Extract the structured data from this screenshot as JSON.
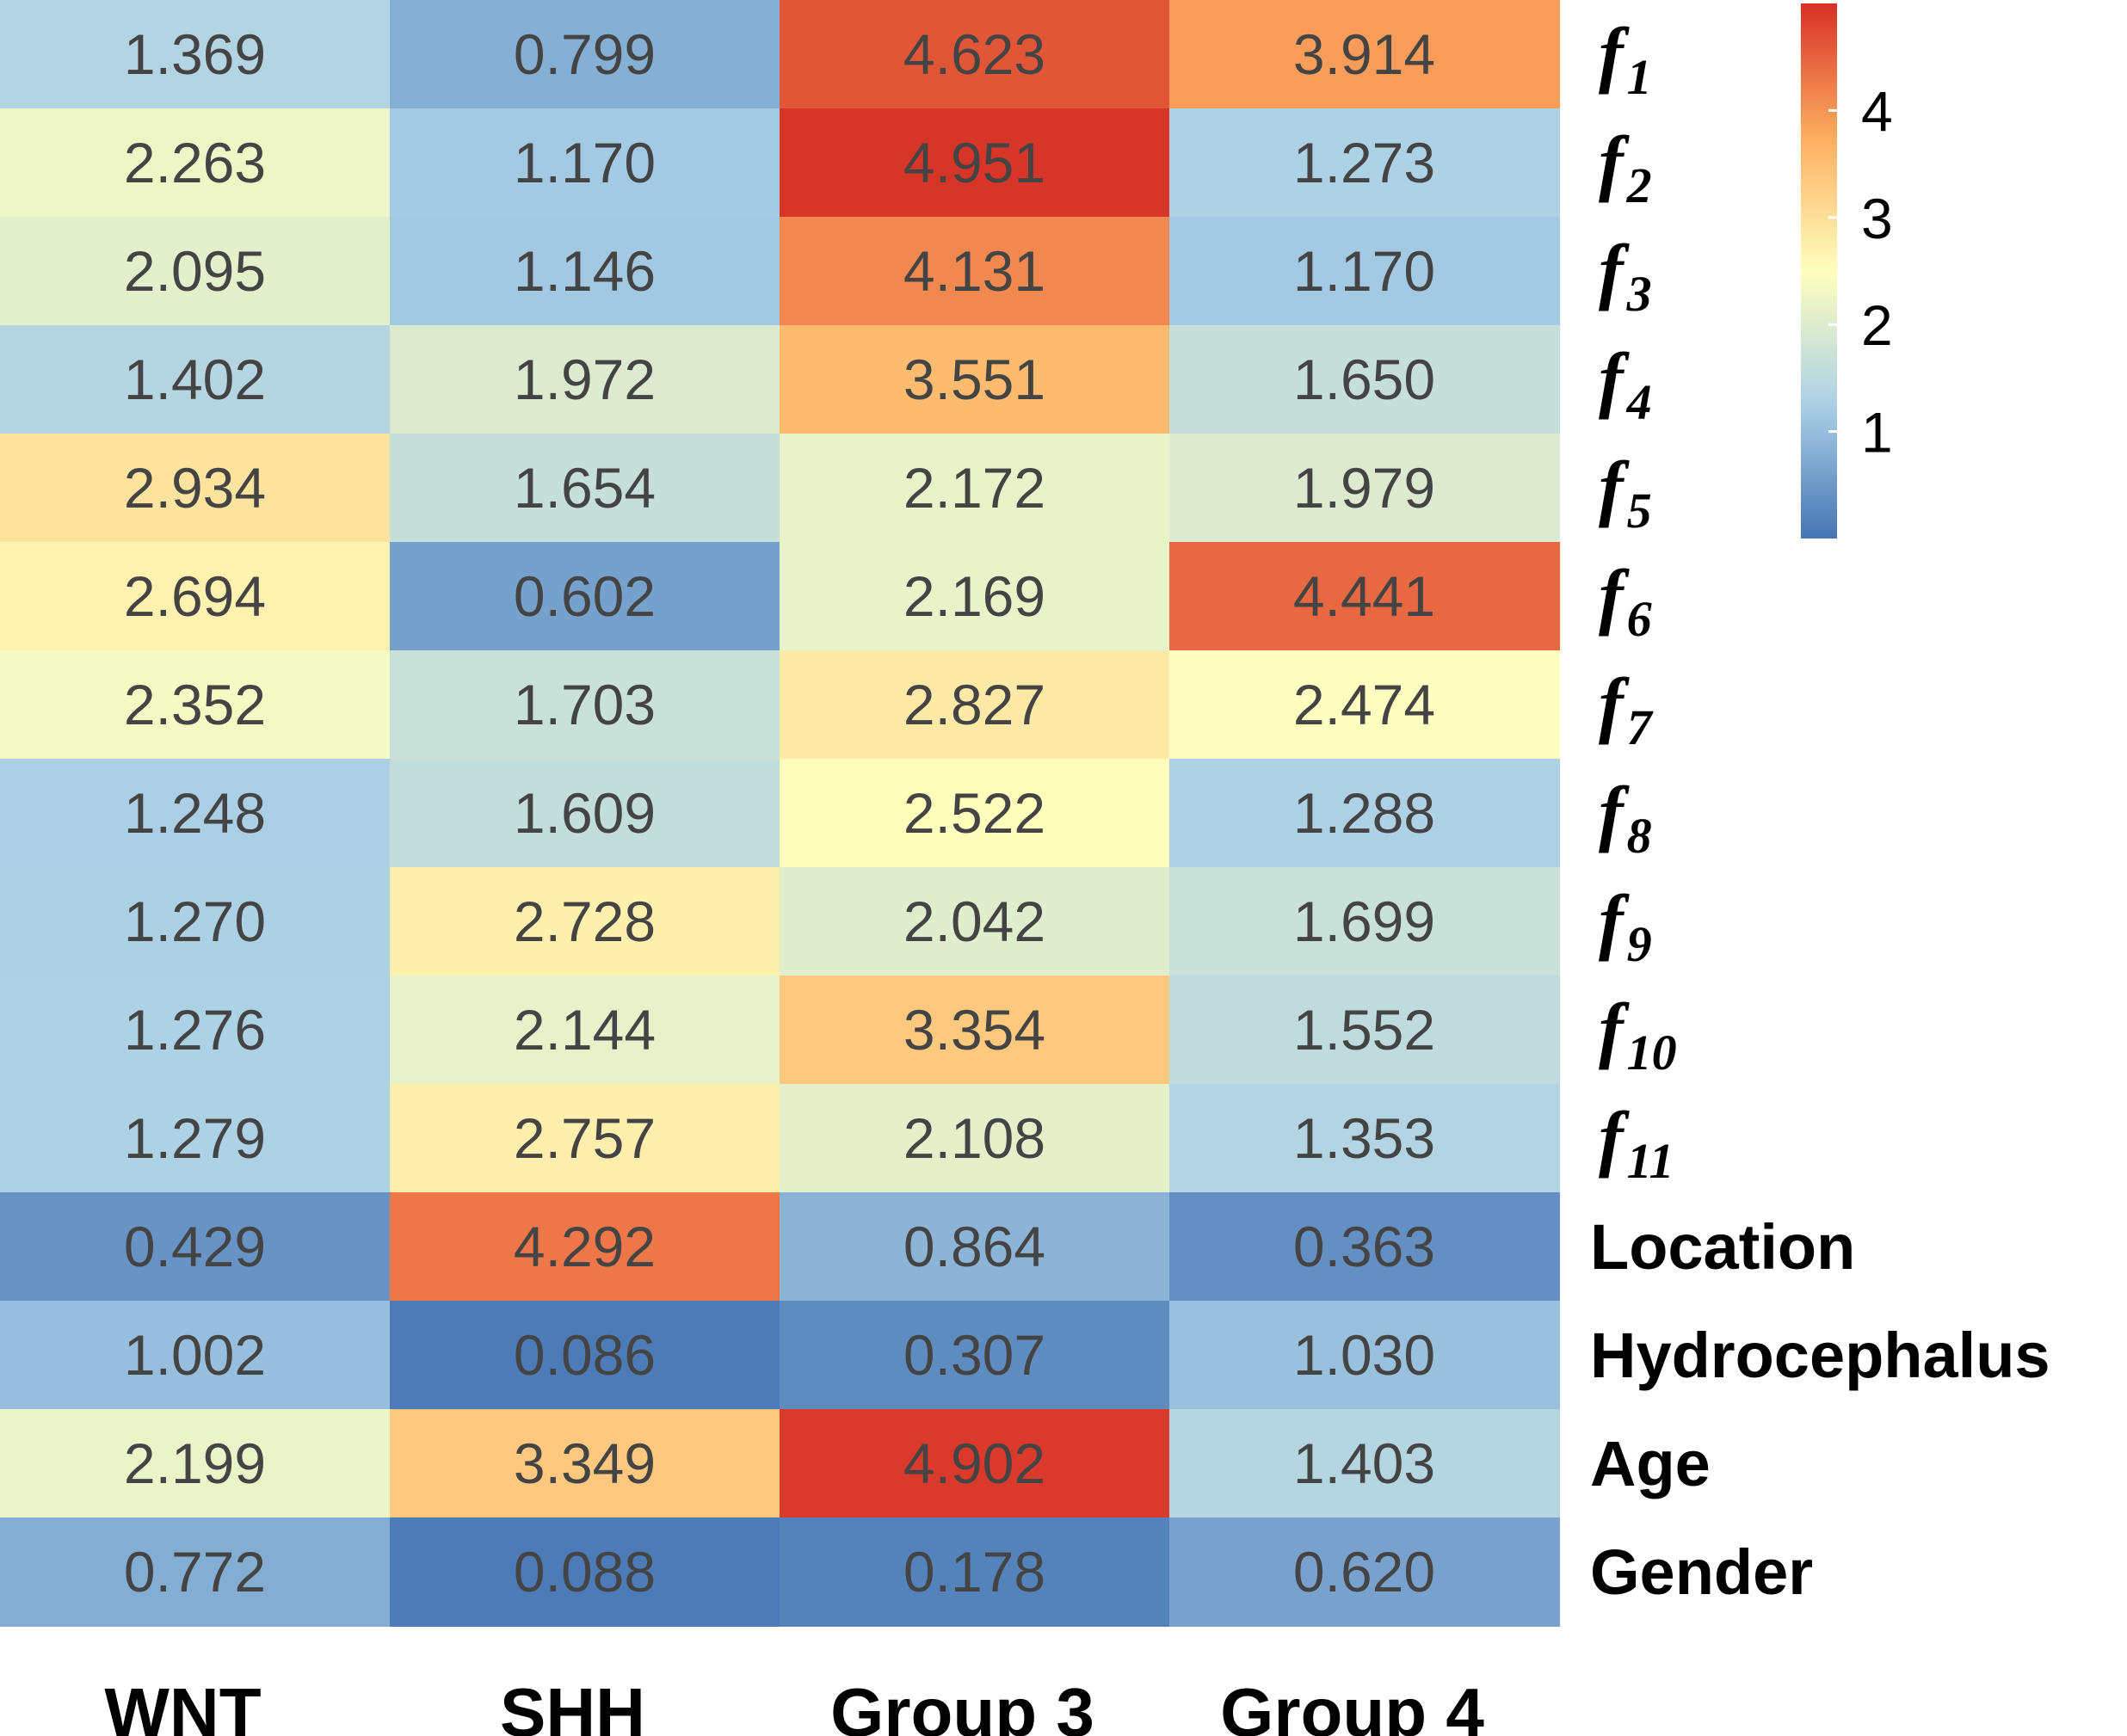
{
  "chart_data": {
    "type": "heatmap",
    "title": "",
    "columns": [
      "WNT",
      "SHH",
      "Group 3",
      "Group 4"
    ],
    "rows": [
      {
        "symbol": "f",
        "subscript": "1"
      },
      {
        "symbol": "f",
        "subscript": "2"
      },
      {
        "symbol": "f",
        "subscript": "3"
      },
      {
        "symbol": "f",
        "subscript": "4"
      },
      {
        "symbol": "f",
        "subscript": "5"
      },
      {
        "symbol": "f",
        "subscript": "6"
      },
      {
        "symbol": "f",
        "subscript": "7"
      },
      {
        "symbol": "f",
        "subscript": "8"
      },
      {
        "symbol": "f",
        "subscript": "9"
      },
      {
        "symbol": "f",
        "subscript": "10"
      },
      {
        "symbol": "f",
        "subscript": "11"
      },
      {
        "symbol": "Location",
        "subscript": ""
      },
      {
        "symbol": "Hydrocephalus",
        "subscript": ""
      },
      {
        "symbol": "Age",
        "subscript": ""
      },
      {
        "symbol": "Gender",
        "subscript": ""
      }
    ],
    "values": [
      [
        "1.369",
        "0.799",
        "4.623",
        "3.914"
      ],
      [
        "2.263",
        "1.170",
        "4.951",
        "1.273"
      ],
      [
        "2.095",
        "1.146",
        "4.131",
        "1.170"
      ],
      [
        "1.402",
        "1.972",
        "3.551",
        "1.650"
      ],
      [
        "2.934",
        "1.654",
        "2.172",
        "1.979"
      ],
      [
        "2.694",
        "0.602",
        "2.169",
        "4.441"
      ],
      [
        "2.352",
        "1.703",
        "2.827",
        "2.474"
      ],
      [
        "1.248",
        "1.609",
        "2.522",
        "1.288"
      ],
      [
        "1.270",
        "2.728",
        "2.042",
        "1.699"
      ],
      [
        "1.276",
        "2.144",
        "3.354",
        "1.552"
      ],
      [
        "1.279",
        "2.757",
        "2.108",
        "1.353"
      ],
      [
        "0.429",
        "4.292",
        "0.864",
        "0.363"
      ],
      [
        "1.002",
        "0.086",
        "0.307",
        "1.030"
      ],
      [
        "2.199",
        "3.349",
        "4.902",
        "1.403"
      ],
      [
        "0.772",
        "0.088",
        "0.178",
        "0.620"
      ]
    ],
    "colorbar": {
      "min": 0,
      "max": 5,
      "ticks": [
        "1",
        "2",
        "3",
        "4"
      ],
      "colors": [
        "#4575b4",
        "#abd0e6",
        "#ffffbf",
        "#fdae61",
        "#d73027"
      ]
    }
  }
}
